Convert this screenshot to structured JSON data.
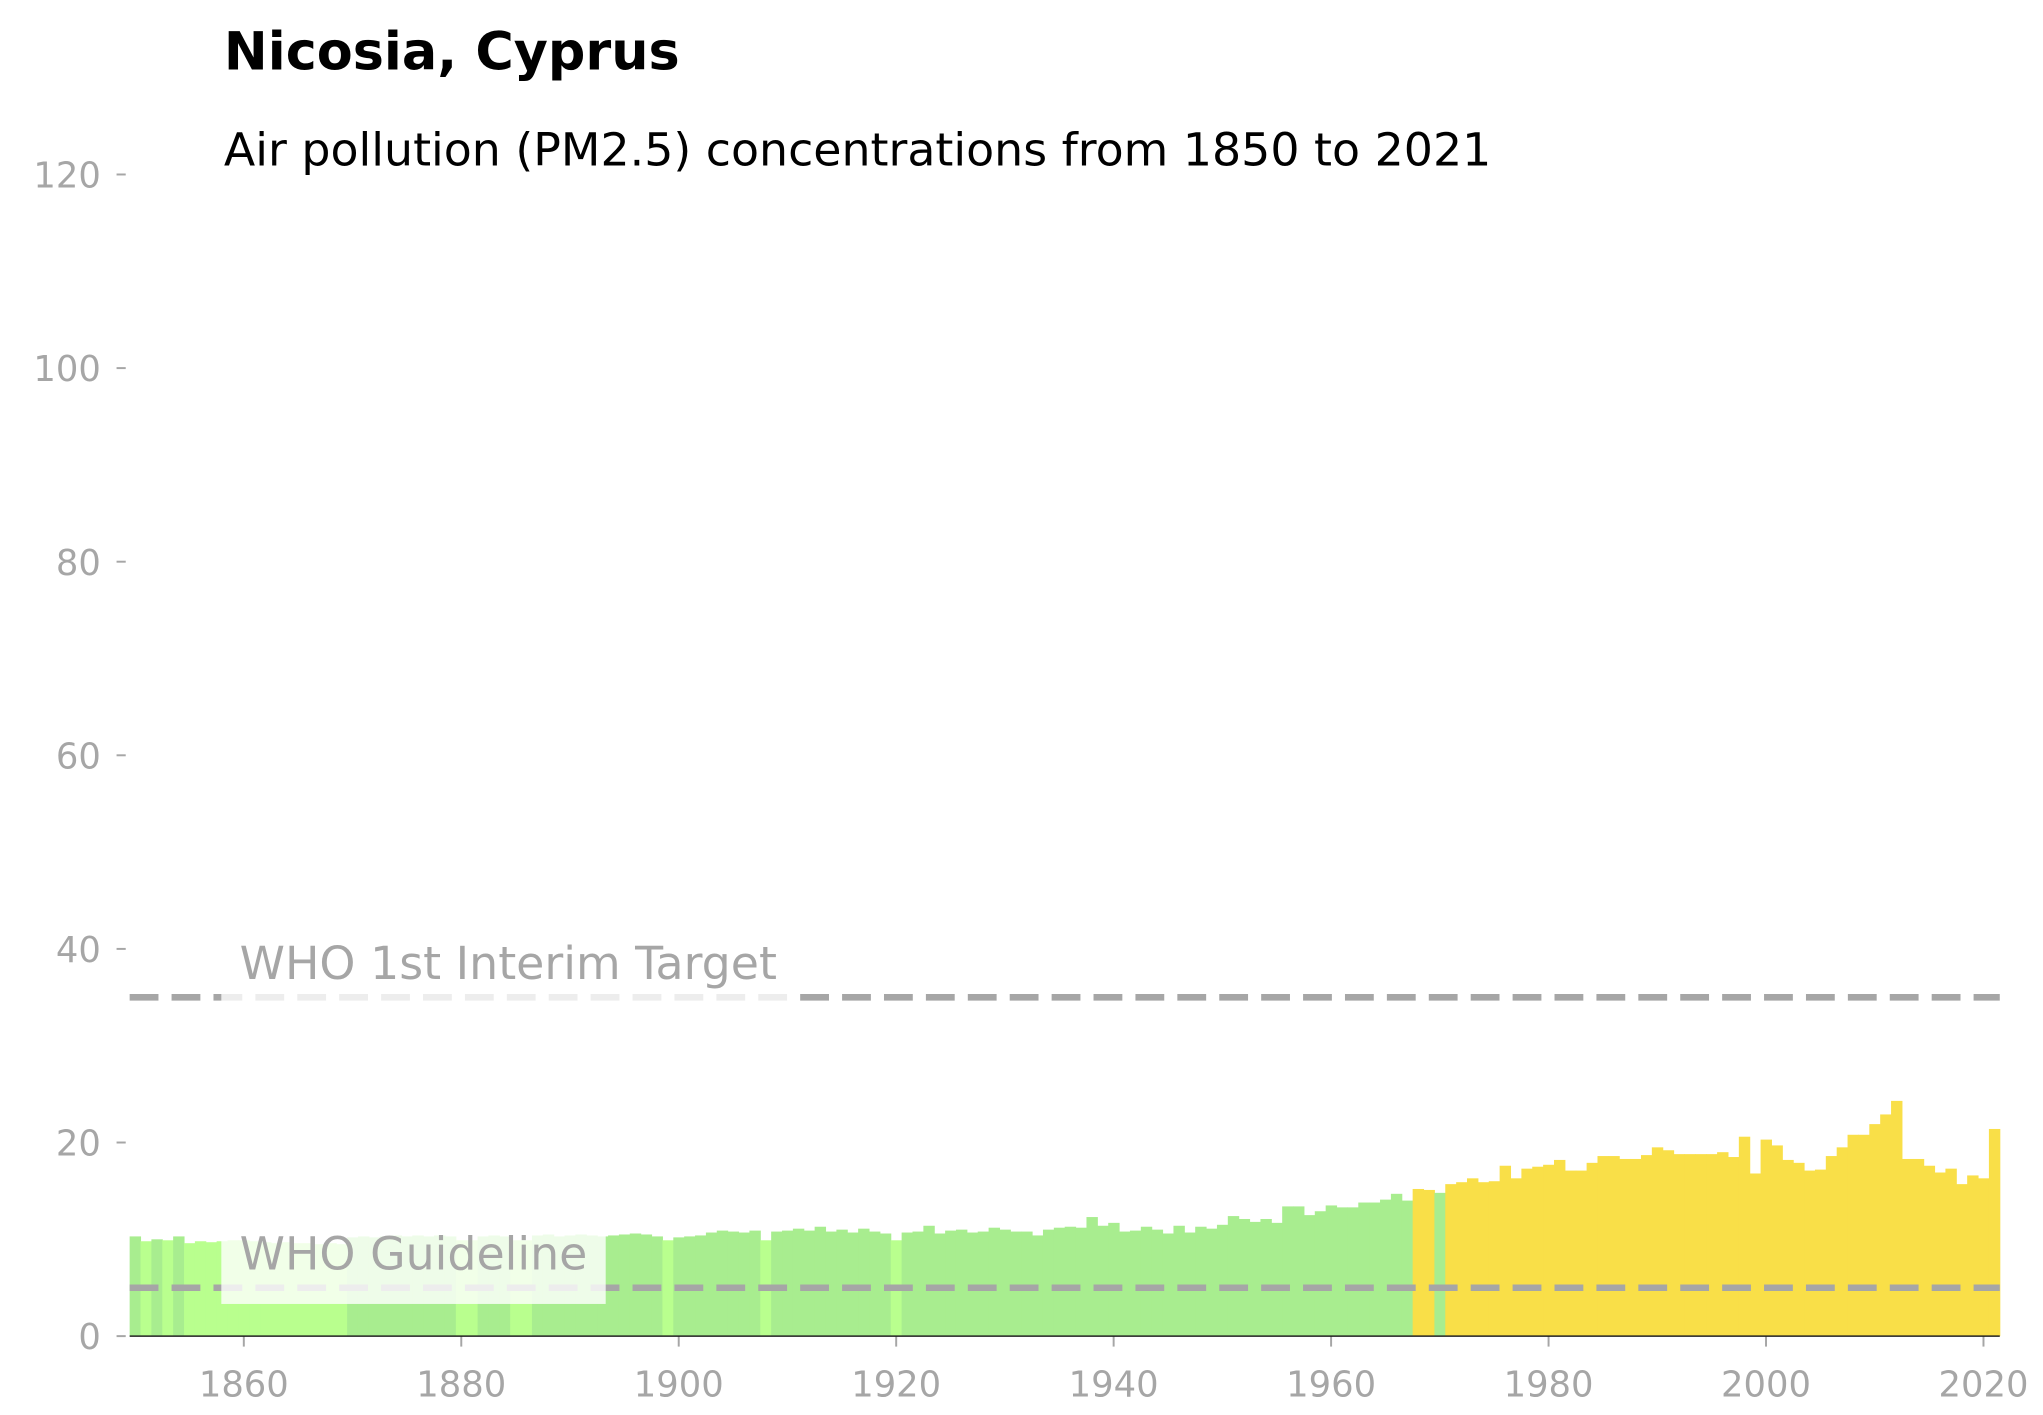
{
  "chart_data": {
    "type": "bar",
    "title": "Nicosia, Cyprus",
    "subtitle": "Air pollution (PM2.5) concentrations from 1850 to 2021",
    "x": [
      1850,
      1851,
      1852,
      1853,
      1854,
      1855,
      1856,
      1857,
      1858,
      1859,
      1860,
      1861,
      1862,
      1863,
      1864,
      1865,
      1866,
      1867,
      1868,
      1869,
      1870,
      1871,
      1872,
      1873,
      1874,
      1875,
      1876,
      1877,
      1878,
      1879,
      1880,
      1881,
      1882,
      1883,
      1884,
      1885,
      1886,
      1887,
      1888,
      1889,
      1890,
      1891,
      1892,
      1893,
      1894,
      1895,
      1896,
      1897,
      1898,
      1899,
      1900,
      1901,
      1902,
      1903,
      1904,
      1905,
      1906,
      1907,
      1908,
      1909,
      1910,
      1911,
      1912,
      1913,
      1914,
      1915,
      1916,
      1917,
      1918,
      1919,
      1920,
      1921,
      1922,
      1923,
      1924,
      1925,
      1926,
      1927,
      1928,
      1929,
      1930,
      1931,
      1932,
      1933,
      1934,
      1935,
      1936,
      1937,
      1938,
      1939,
      1940,
      1941,
      1942,
      1943,
      1944,
      1945,
      1946,
      1947,
      1948,
      1949,
      1950,
      1951,
      1952,
      1953,
      1954,
      1955,
      1956,
      1957,
      1958,
      1959,
      1960,
      1961,
      1962,
      1963,
      1964,
      1965,
      1966,
      1967,
      1968,
      1969,
      1970,
      1971,
      1972,
      1973,
      1974,
      1975,
      1976,
      1977,
      1978,
      1979,
      1980,
      1981,
      1982,
      1983,
      1984,
      1985,
      1986,
      1987,
      1988,
      1989,
      1990,
      1991,
      1992,
      1993,
      1994,
      1995,
      1996,
      1997,
      1998,
      1999,
      2000,
      2001,
      2002,
      2003,
      2004,
      2005,
      2006,
      2007,
      2008,
      2009,
      2010,
      2011,
      2012,
      2013,
      2014,
      2015,
      2016,
      2017,
      2018,
      2019,
      2020,
      2021
    ],
    "values": [
      10.3,
      9.8,
      10.0,
      9.9,
      10.3,
      9.6,
      9.8,
      9.7,
      9.8,
      9.9,
      9.9,
      9.8,
      9.7,
      9.6,
      9.7,
      9.6,
      9.6,
      9.5,
      9.6,
      9.5,
      10.2,
      10.3,
      10.2,
      10.3,
      10.4,
      10.3,
      10.4,
      10.3,
      10.4,
      10.3,
      9.9,
      9.9,
      10.3,
      10.4,
      10.3,
      9.9,
      9.9,
      10.4,
      10.5,
      10.3,
      10.4,
      10.5,
      10.4,
      10.3,
      10.4,
      10.5,
      10.6,
      10.5,
      10.3,
      9.9,
      10.2,
      10.3,
      10.4,
      10.7,
      10.9,
      10.8,
      10.7,
      10.9,
      9.9,
      10.8,
      10.9,
      11.1,
      10.9,
      11.3,
      10.8,
      11.0,
      10.7,
      11.1,
      10.8,
      10.6,
      9.9,
      10.7,
      10.8,
      11.4,
      10.6,
      10.9,
      11.0,
      10.7,
      10.8,
      11.2,
      11.0,
      10.8,
      10.8,
      10.4,
      11.0,
      11.2,
      11.3,
      11.2,
      12.3,
      11.4,
      11.7,
      10.8,
      10.9,
      11.3,
      11.0,
      10.6,
      11.4,
      10.7,
      11.3,
      11.1,
      11.5,
      12.4,
      12.1,
      11.8,
      12.1,
      11.7,
      13.4,
      13.4,
      12.5,
      12.9,
      13.5,
      13.3,
      13.3,
      13.8,
      13.8,
      14.1,
      14.7,
      14.0,
      15.2,
      15.1,
      14.8,
      15.7,
      15.9,
      16.3,
      15.9,
      16.0,
      17.6,
      16.3,
      17.3,
      17.5,
      17.7,
      18.2,
      17.1,
      17.1,
      17.9,
      18.6,
      18.6,
      18.3,
      18.3,
      18.7,
      19.5,
      19.2,
      18.8,
      18.8,
      18.8,
      18.8,
      19.0,
      18.5,
      20.6,
      16.8,
      20.3,
      19.7,
      18.2,
      17.9,
      17.1,
      17.2,
      18.6,
      19.5,
      20.8,
      20.8,
      21.9,
      22.9,
      24.3,
      18.3,
      18.3,
      17.6,
      16.9,
      17.3,
      15.7,
      16.6,
      16.3,
      21.4
    ],
    "colors": [
      "#a8ed8f",
      "#b9ff8e",
      "#a8ed8f",
      "#b9ff8e",
      "#a8ed8f",
      "#b9ff8e",
      "#b9ff8e",
      "#b9ff8e",
      "#b9ff8e",
      "#b9ff8e",
      "#b9ff8e",
      "#b9ff8e",
      "#b9ff8e",
      "#b9ff8e",
      "#b9ff8e",
      "#b9ff8e",
      "#b9ff8e",
      "#b9ff8e",
      "#b9ff8e",
      "#b9ff8e",
      "#a8ed8f",
      "#a8ed8f",
      "#a8ed8f",
      "#a8ed8f",
      "#a8ed8f",
      "#a8ed8f",
      "#a8ed8f",
      "#a8ed8f",
      "#a8ed8f",
      "#a8ed8f",
      "#b9ff8e",
      "#b9ff8e",
      "#a8ed8f",
      "#a8ed8f",
      "#a8ed8f",
      "#b9ff8e",
      "#b9ff8e",
      "#a8ed8f",
      "#a8ed8f",
      "#a8ed8f",
      "#a8ed8f",
      "#a8ed8f",
      "#a8ed8f",
      "#a8ed8f",
      "#a8ed8f",
      "#a8ed8f",
      "#a8ed8f",
      "#a8ed8f",
      "#a8ed8f",
      "#b9ff8e",
      "#a8ed8f",
      "#a8ed8f",
      "#a8ed8f",
      "#a8ed8f",
      "#a8ed8f",
      "#a8ed8f",
      "#a8ed8f",
      "#a8ed8f",
      "#b9ff8e",
      "#a8ed8f",
      "#a8ed8f",
      "#a8ed8f",
      "#a8ed8f",
      "#a8ed8f",
      "#a8ed8f",
      "#a8ed8f",
      "#a8ed8f",
      "#a8ed8f",
      "#a8ed8f",
      "#a8ed8f",
      "#b9ff8e",
      "#a8ed8f",
      "#a8ed8f",
      "#a8ed8f",
      "#a8ed8f",
      "#a8ed8f",
      "#a8ed8f",
      "#a8ed8f",
      "#a8ed8f",
      "#a8ed8f",
      "#a8ed8f",
      "#a8ed8f",
      "#a8ed8f",
      "#a8ed8f",
      "#a8ed8f",
      "#a8ed8f",
      "#a8ed8f",
      "#a8ed8f",
      "#a8ed8f",
      "#a8ed8f",
      "#a8ed8f",
      "#a8ed8f",
      "#a8ed8f",
      "#a8ed8f",
      "#a8ed8f",
      "#a8ed8f",
      "#a8ed8f",
      "#a8ed8f",
      "#a8ed8f",
      "#a8ed8f",
      "#a8ed8f",
      "#a8ed8f",
      "#a8ed8f",
      "#a8ed8f",
      "#a8ed8f",
      "#a8ed8f",
      "#a8ed8f",
      "#a8ed8f",
      "#a8ed8f",
      "#a8ed8f",
      "#a8ed8f",
      "#a8ed8f",
      "#a8ed8f",
      "#a8ed8f",
      "#a8ed8f",
      "#a8ed8f",
      "#a8ed8f",
      "#a8ed8f",
      "#f9df48",
      "#f9df48",
      "#a8ed8f",
      "#f9df48",
      "#f9df48",
      "#f9df48",
      "#f9df48",
      "#f9df48",
      "#f9df48",
      "#f9df48",
      "#f9df48",
      "#f9df48",
      "#f9df48",
      "#f9df48",
      "#f9df48",
      "#f9df48",
      "#f9df48",
      "#f9df48",
      "#f9df48",
      "#f9df48",
      "#f9df48",
      "#f9df48",
      "#f9df48",
      "#f9df48",
      "#f9df48",
      "#f9df48",
      "#f9df48",
      "#f9df48",
      "#f9df48",
      "#f9df48",
      "#f9df48",
      "#f9df48",
      "#f9df48",
      "#f9df48",
      "#f9df48",
      "#f9df48",
      "#f9df48",
      "#f9df48",
      "#f9df48",
      "#f9df48",
      "#f9df48",
      "#f9df48",
      "#f9df48",
      "#f9df48",
      "#f9df48",
      "#f9df48",
      "#f9df48",
      "#f9df48",
      "#f9df48",
      "#f9df48",
      "#f9df48",
      "#f9df48",
      "#f9df48",
      "#f9df48"
    ],
    "xlim": [
      1849.5,
      2021.5
    ],
    "xticks": [
      1860,
      1880,
      1900,
      1920,
      1940,
      1960,
      1980,
      2000,
      2020
    ],
    "ylim": [
      0,
      120
    ],
    "yticks": [
      0,
      20,
      40,
      60,
      80,
      100,
      120
    ],
    "reference_lines": [
      {
        "value": 35,
        "label": "WHO 1st Interim Target"
      },
      {
        "value": 5,
        "label": "WHO Guideline"
      }
    ]
  }
}
